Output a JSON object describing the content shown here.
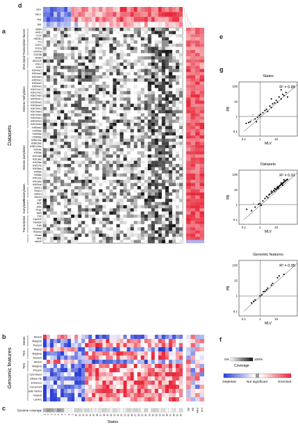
{
  "panels": {
    "a": "a",
    "b": "b",
    "c": "c",
    "d": "d",
    "e": "e",
    "f": "f",
    "g": "g"
  },
  "panel_d_rows": [
    "HIV",
    "MLV",
    "PB",
    "SB"
  ],
  "states": [
    "1",
    "2",
    "3",
    "4",
    "5",
    "6",
    "7",
    "8",
    "9",
    "10",
    "11",
    "12",
    "13",
    "14",
    "15",
    "16",
    "17",
    "18",
    "19",
    "20",
    "21",
    "22",
    "23",
    "24",
    "25",
    "26",
    "27",
    "28",
    "29",
    "30",
    "31",
    "32",
    "33",
    "34",
    "35",
    "36",
    "37",
    "38",
    "39",
    "40"
  ],
  "axis_states_label": "States",
  "datasets_label": "Datasets",
  "genomic_label": "Genomic features",
  "coverage_label": "Genome coverage",
  "groups_a": [
    {
      "name": "Transcription factors",
      "rows": [
        "BRD4",
        "BRG1",
        "CTCF",
        "HMGN1",
        "YY1",
        "STAT1",
        "STAT4",
        "STAT5A",
        "STAT5B"
      ]
    },
    {
      "name": "DNA repair",
      "rows": [
        "INO80",
        "BRCA1P",
        "H2A.Z",
        "H2AX"
      ]
    },
    {
      "name": "Histone methylation",
      "rows": [
        "H3K4me1",
        "H3K4me2",
        "H3K4me3",
        "H3K9me1",
        "H3K9me2",
        "H3K9me3",
        "H3K27me1",
        "H3K27me2",
        "H3K27me3",
        "H3K36me1",
        "H3K36me2",
        "H3K36me3",
        "H3K79me1",
        "H3K79me2",
        "H3K79me3",
        "H4K20me1",
        "H4K20me2",
        "H4K20me3",
        "H4R3me2"
      ]
    },
    {
      "name": "Histone acetylation",
      "rows": [
        "H2AK5ac",
        "H2AK9ac",
        "H2BK5ac",
        "H2BK12ac",
        "H2BK20ac",
        "H2BK120ac",
        "H3K4ac",
        "H3K9ac",
        "H3K14ac",
        "H3K18ac",
        "H3K23ac",
        "H3K27ac",
        "H3K36ac",
        "H4K5ac",
        "H4K8ac",
        "H4K12ac",
        "H4K16ac",
        "H4K91ac"
      ]
    },
    {
      "name": "Deacetylases",
      "rows": [
        "HDAC1",
        "HDAC2",
        "HDAC3",
        "HDAC6"
      ]
    },
    {
      "name": "Acetylases",
      "rows": [
        "CBP",
        "MOF",
        "p300",
        "PCAF",
        "Tip60"
      ]
    },
    {
      "name": "Transcription",
      "rows": [
        "PolII",
        "PolIIS2P",
        "PolIIS5P",
        "PolIII",
        "RNAtotal",
        "RNAnuc"
      ]
    },
    {
      "name": "",
      "rows": [
        "DNase",
        "MRE",
        "MeDIP"
      ]
    }
  ],
  "groups_b": [
    {
      "name": "Genes",
      "rows": [
        "Absent",
        "Marginal",
        "Present"
      ]
    },
    {
      "name": "TSS",
      "rows": [
        "Absent",
        "Marginal",
        "Present"
      ]
    },
    {
      "name": "TES",
      "rows": [
        "Absent",
        "Marginal",
        "Present"
      ]
    },
    {
      "name": "",
      "rows": [
        "CpG island",
        "DNase HS",
        "Enhancer",
        "Conserved",
        "Safe Harbor",
        "Repeat",
        "Lamins"
      ]
    }
  ],
  "side_cols": [
    "SB",
    "PB",
    "MLV",
    "HIV"
  ],
  "scatters": [
    {
      "title": "States",
      "r2": "R² = 0.85",
      "xlabel": "MLV",
      "ylabel": "PB",
      "yticks": [
        "100",
        "10",
        "1",
        "0.1"
      ],
      "xticks": [
        "0.1",
        "1",
        "10"
      ],
      "points": [
        [
          0.14,
          0.35
        ],
        [
          0.2,
          0.4
        ],
        [
          0.25,
          0.45
        ],
        [
          0.3,
          0.55
        ],
        [
          0.4,
          0.6
        ],
        [
          0.5,
          0.7
        ],
        [
          0.7,
          0.9
        ],
        [
          0.9,
          1.2
        ],
        [
          1.1,
          1.4
        ],
        [
          1.5,
          1.8
        ],
        [
          2,
          2.5
        ],
        [
          2.5,
          3
        ],
        [
          3,
          2.2
        ],
        [
          4,
          5
        ],
        [
          5,
          4
        ],
        [
          6,
          7
        ],
        [
          8,
          8
        ],
        [
          10,
          12
        ],
        [
          12,
          9
        ],
        [
          15,
          20
        ],
        [
          20,
          15
        ],
        [
          25,
          30
        ],
        [
          30,
          25
        ],
        [
          40,
          40
        ],
        [
          50,
          20
        ],
        [
          0.35,
          1.3
        ],
        [
          0.6,
          0.45
        ],
        [
          5,
          15
        ],
        [
          20,
          60
        ]
      ]
    },
    {
      "title": "Datasets",
      "r2": "R² = 0.91",
      "xlabel": "MLV",
      "ylabel": "PB",
      "yticks": [
        "100",
        "10",
        "1",
        "0.1"
      ],
      "xticks": [
        "0.1",
        "1",
        "10"
      ],
      "points": [
        [
          0.15,
          0.5
        ],
        [
          0.3,
          0.4
        ],
        [
          0.5,
          0.7
        ],
        [
          0.8,
          1.1
        ],
        [
          1,
          1.2
        ],
        [
          1.5,
          1.8
        ],
        [
          2,
          2.6
        ],
        [
          2.5,
          3.5
        ],
        [
          3,
          3
        ],
        [
          3.5,
          4.5
        ],
        [
          4,
          5
        ],
        [
          5,
          6
        ],
        [
          6,
          7
        ],
        [
          7,
          9
        ],
        [
          8,
          8
        ],
        [
          9,
          11
        ],
        [
          10,
          10
        ],
        [
          11,
          13
        ],
        [
          12,
          12
        ],
        [
          13,
          15
        ],
        [
          14,
          13
        ],
        [
          15,
          17
        ],
        [
          16,
          18
        ],
        [
          18,
          20
        ],
        [
          20,
          22
        ],
        [
          22,
          24
        ],
        [
          24,
          26
        ],
        [
          26,
          28
        ],
        [
          28,
          30
        ],
        [
          30,
          32
        ],
        [
          33,
          35
        ],
        [
          36,
          38
        ],
        [
          40,
          42
        ],
        [
          45,
          46
        ],
        [
          50,
          48
        ],
        [
          5,
          8
        ],
        [
          8,
          12
        ],
        [
          12,
          16
        ],
        [
          20,
          28
        ],
        [
          25,
          20
        ],
        [
          0.4,
          1.2
        ],
        [
          1.2,
          0.9
        ],
        [
          30,
          45
        ]
      ]
    },
    {
      "title": "Genomic features",
      "r2": "R² = 0.95",
      "xlabel": "MLV",
      "ylabel": "PB",
      "yticks": [
        "100",
        "10",
        "1",
        "0.1"
      ],
      "xticks": [
        "0.1",
        "1",
        "10"
      ],
      "points": [
        [
          0.3,
          0.35
        ],
        [
          0.4,
          0.45
        ],
        [
          0.5,
          0.55
        ],
        [
          1,
          1
        ],
        [
          1.3,
          1.2
        ],
        [
          1.6,
          1.9
        ],
        [
          2,
          2
        ],
        [
          3,
          3.2
        ],
        [
          5,
          5
        ],
        [
          6,
          6.5
        ],
        [
          12,
          15
        ],
        [
          15,
          20
        ],
        [
          30,
          25
        ],
        [
          2.5,
          2.5
        ]
      ]
    }
  ],
  "coverage_legend": {
    "min": "0%",
    "max": "100%",
    "label": "Coverage"
  },
  "enrichment_legend": {
    "left": "Depleted",
    "mid": "Not significant",
    "right": "Enriched"
  },
  "colors": {
    "enriched": "#e8283a",
    "depleted": "#2a3fd6",
    "neutral": "#ffffff",
    "grey": "#9a9a9a"
  }
}
